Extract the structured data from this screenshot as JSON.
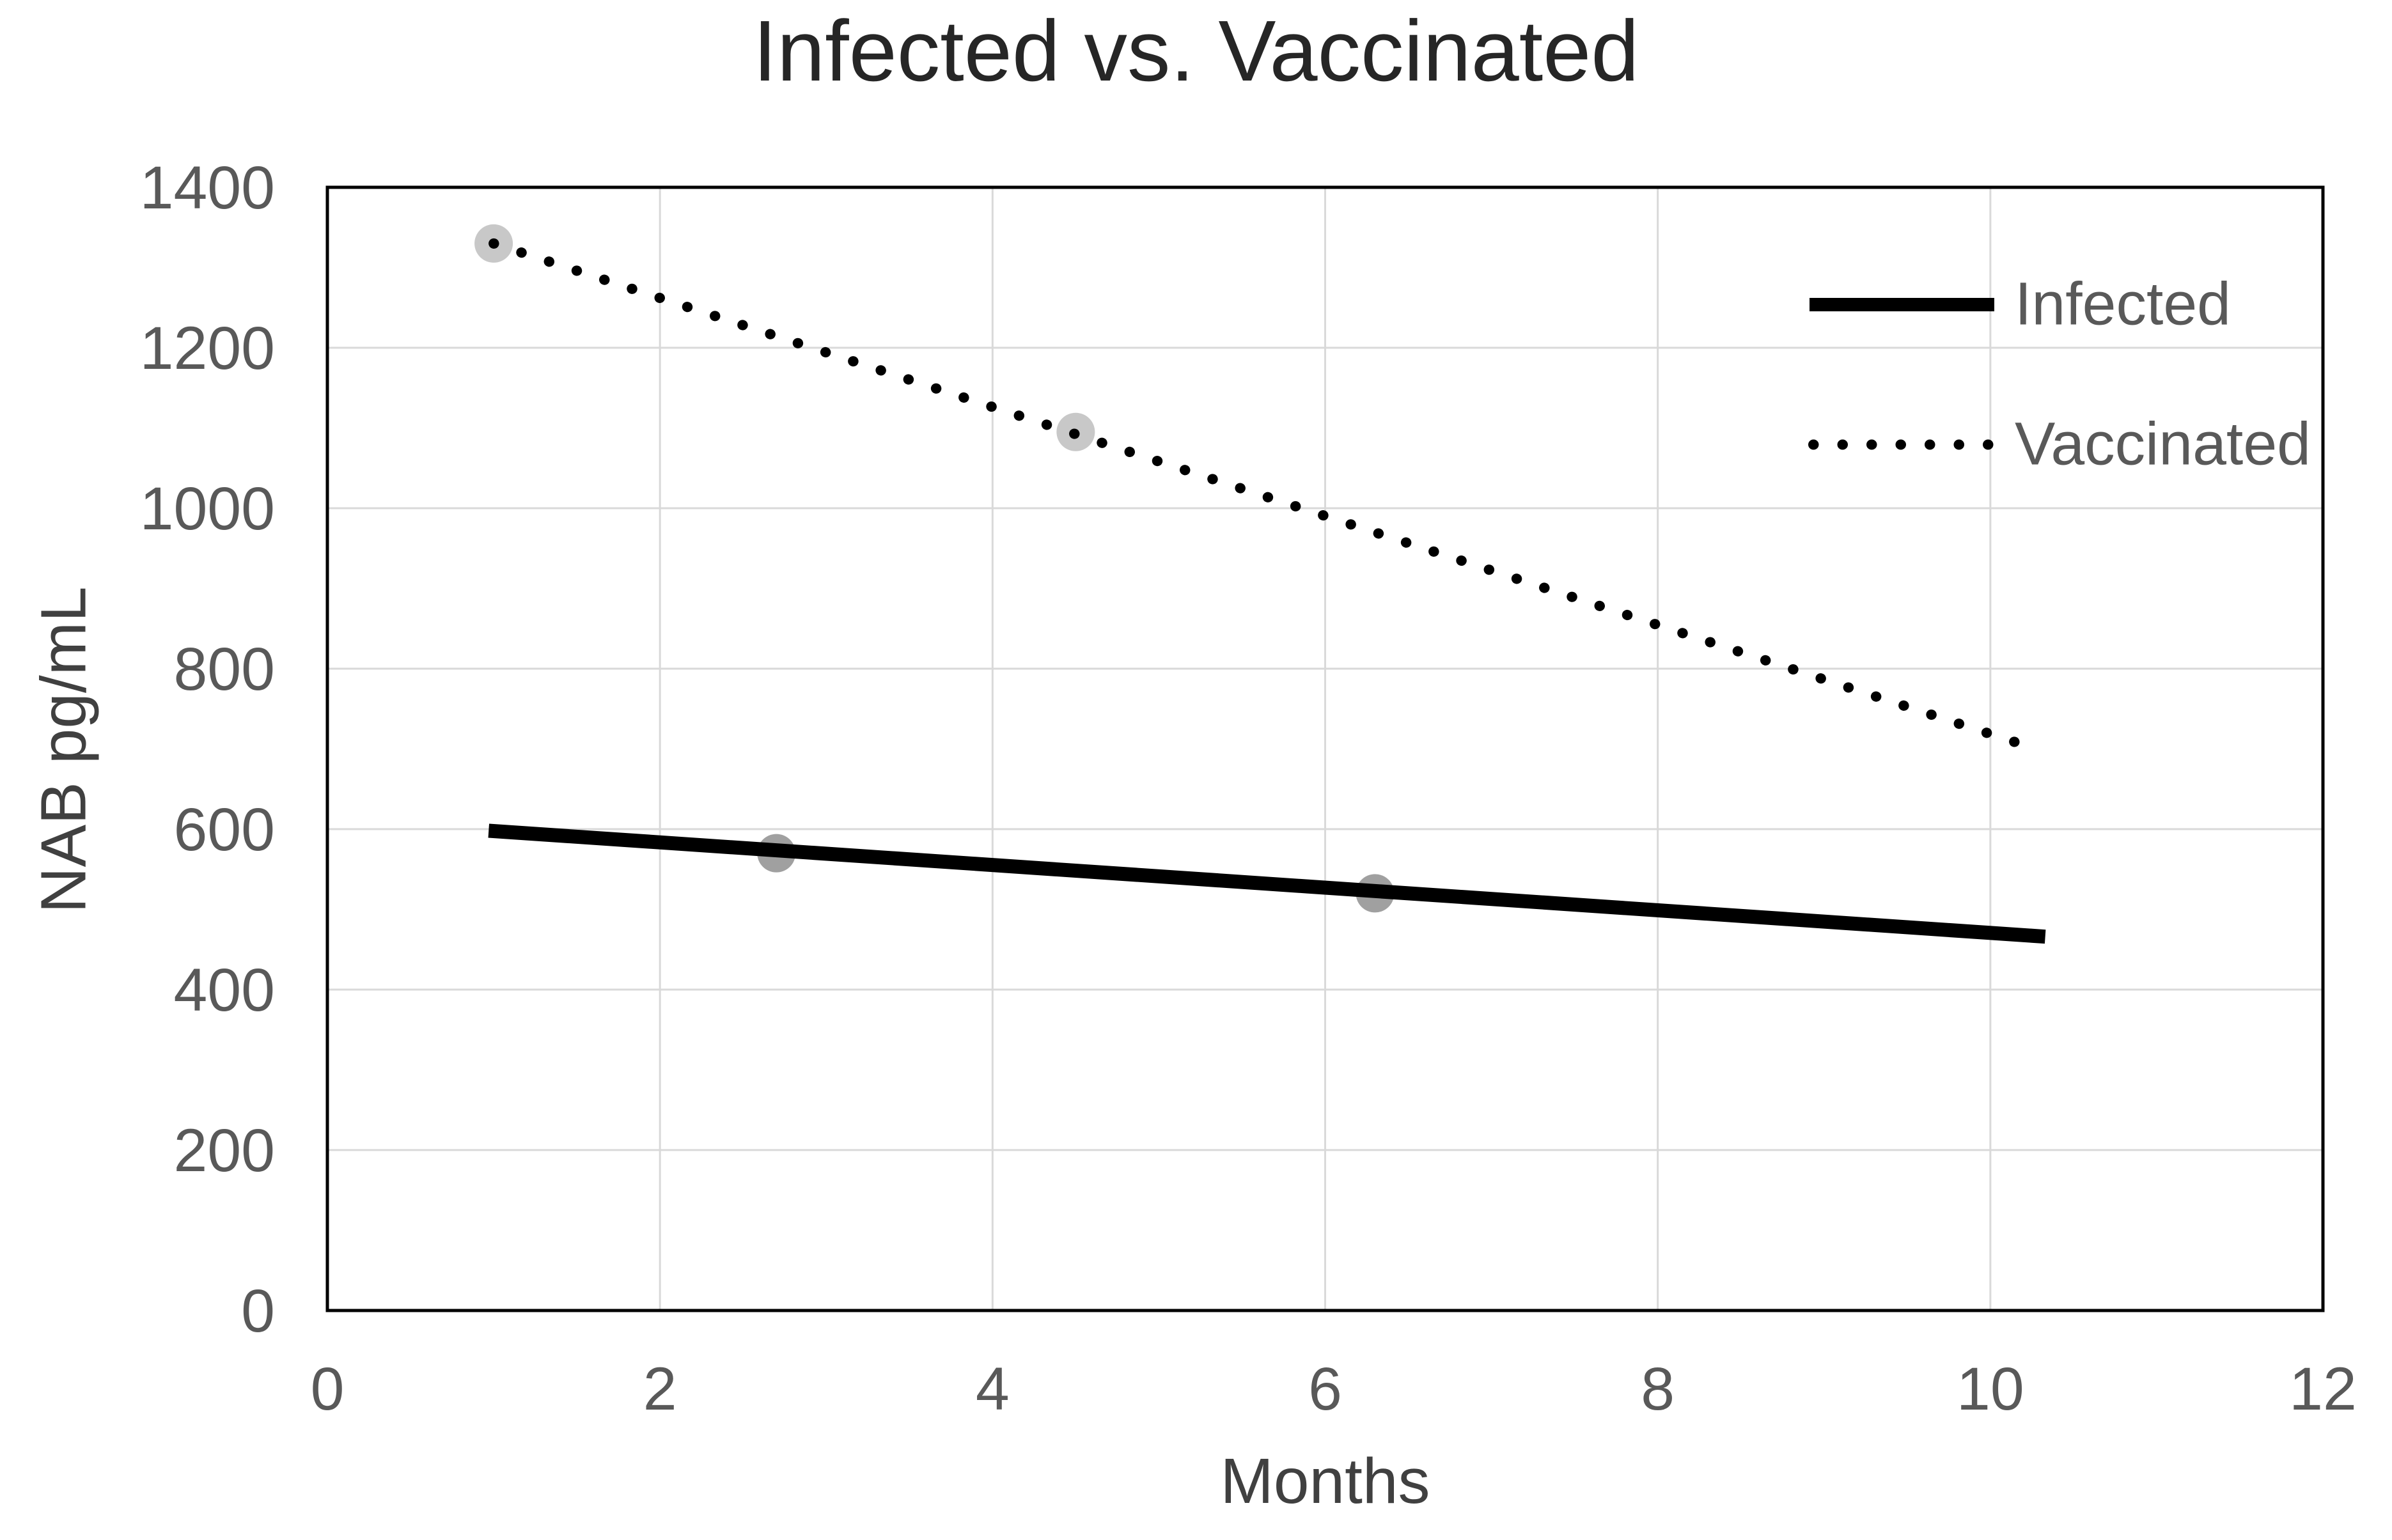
{
  "chart_data": {
    "type": "scatter",
    "title": "Infected vs. Vaccinated",
    "xlabel": "Months",
    "ylabel": "NAB pg/mL",
    "xlim": [
      0,
      12
    ],
    "ylim": [
      0,
      1400
    ],
    "xticks": [
      0,
      2,
      4,
      6,
      8,
      10,
      12
    ],
    "yticks": [
      0,
      200,
      400,
      600,
      800,
      1000,
      1200,
      1400
    ],
    "grid": true,
    "legend_position": "inside-top-right",
    "series": [
      {
        "name": "Infected",
        "line_style": "solid",
        "line_color": "#000000",
        "marker_color": "#a0a0a0",
        "marker_points": [
          [
            2.7,
            570
          ],
          [
            6.3,
            520
          ]
        ],
        "trendline": {
          "start": [
            0.97,
            598
          ],
          "end": [
            10.33,
            466
          ]
        }
      },
      {
        "name": "Vaccinated",
        "line_style": "dotted",
        "line_color": "#000000",
        "marker_color": "#c8c8c8",
        "marker_points": [
          [
            1.0,
            1330
          ],
          [
            4.5,
            1095
          ]
        ],
        "trendline": {
          "start": [
            1.0,
            1330
          ],
          "end": [
            10.2,
            705
          ]
        }
      }
    ],
    "colors": {
      "background": "#ffffff",
      "plot_border": "#000000",
      "gridline": "#d9d9d9",
      "tick_label": "#595959",
      "axis_title": "#404040",
      "title": "#262626"
    }
  }
}
